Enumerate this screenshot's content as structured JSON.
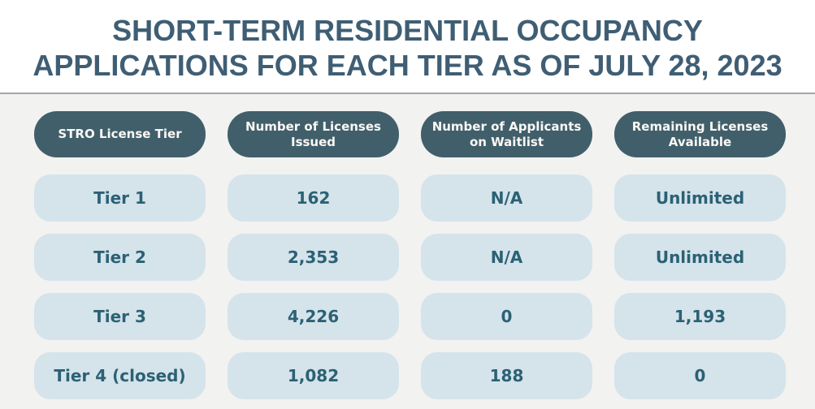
{
  "header": {
    "title_line1": "SHORT-TERM RESIDENTIAL OCCUPANCY",
    "title_line2": "APPLICATIONS FOR EACH TIER AS OF JULY 28, 2023"
  },
  "colors": {
    "title_text": "#3f5e74",
    "divider": "#a2a9a1",
    "band_background": "#f2f2f0",
    "header_pill_background": "#415f6b",
    "header_pill_text": "#faf8f4",
    "cell_background": "#d5e3eb",
    "cell_text": "#2b6174"
  },
  "chart_data": {
    "type": "table",
    "title": "SHORT-TERM RESIDENTIAL OCCUPANCY APPLICATIONS FOR EACH TIER AS OF JULY 28, 2023",
    "columns": [
      "STRO License Tier",
      "Number of Licenses Issued",
      "Number of Applicants on Waitlist",
      "Remaining Licenses Available"
    ],
    "rows": [
      [
        "Tier 1",
        "162",
        "N/A",
        "Unlimited"
      ],
      [
        "Tier 2",
        "2,353",
        "N/A",
        "Unlimited"
      ],
      [
        "Tier 3",
        "4,226",
        "0",
        "1,193"
      ],
      [
        "Tier 4 (closed)",
        "1,082",
        "188",
        "0"
      ]
    ]
  }
}
